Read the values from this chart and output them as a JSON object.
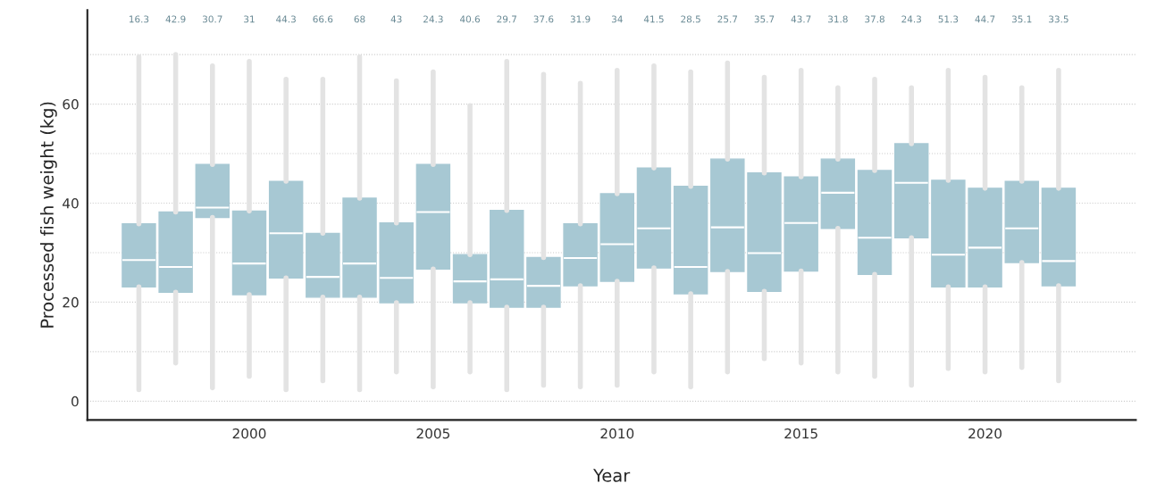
{
  "chart_data": {
    "type": "box",
    "xlabel": "Year",
    "ylabel": "Processed fish weight (kg)",
    "color": "#a7c8d3",
    "x": [
      1997,
      1998,
      1999,
      2000,
      2001,
      2002,
      2003,
      2004,
      2005,
      2006,
      2007,
      2008,
      2009,
      2010,
      2011,
      2012,
      2013,
      2014,
      2015,
      2016,
      2017,
      2018,
      2019,
      2020,
      2021,
      2022
    ],
    "boxes": [
      {
        "low": 2.3,
        "q1": 23.1,
        "median": 28.5,
        "q3": 35.8,
        "high": 69.5
      },
      {
        "low": 7.7,
        "q1": 22.0,
        "median": 27.1,
        "q3": 38.2,
        "high": 70
      },
      {
        "low": 2.7,
        "q1": 37.1,
        "median": 39.1,
        "q3": 47.8,
        "high": 67.7
      },
      {
        "low": 5,
        "q1": 21.5,
        "median": 27.8,
        "q3": 38.4,
        "high": 68.6
      },
      {
        "low": 2.3,
        "q1": 24.9,
        "median": 33.9,
        "q3": 44.4,
        "high": 65
      },
      {
        "low": 4.1,
        "q1": 21,
        "median": 25.1,
        "q3": 33.9,
        "high": 65
      },
      {
        "low": 2.3,
        "q1": 21,
        "median": 27.8,
        "q3": 41,
        "high": 69.5
      },
      {
        "low": 5.9,
        "q1": 19.9,
        "median": 24.9,
        "q3": 36,
        "high": 64.7
      },
      {
        "low": 2.9,
        "q1": 26.7,
        "median": 38.2,
        "q3": 47.8,
        "high": 66.5
      },
      {
        "low": 5.9,
        "q1": 19.9,
        "median": 24.2,
        "q3": 29.6,
        "high": 59.7
      },
      {
        "low": 2.3,
        "q1": 19,
        "median": 24.6,
        "q3": 38.5,
        "high": 68.6
      },
      {
        "low": 3.2,
        "q1": 19,
        "median": 23.3,
        "q3": 29,
        "high": 66
      },
      {
        "low": 2.9,
        "q1": 23.3,
        "median": 28.9,
        "q3": 35.8,
        "high": 64.2
      },
      {
        "low": 3.2,
        "q1": 24.2,
        "median": 31.7,
        "q3": 41.9,
        "high": 66.8
      },
      {
        "low": 5.9,
        "q1": 26.9,
        "median": 34.9,
        "q3": 47.1,
        "high": 67.7
      },
      {
        "low": 2.9,
        "q1": 21.7,
        "median": 27.1,
        "q3": 43.4,
        "high": 66.5
      },
      {
        "low": 5.9,
        "q1": 26.2,
        "median": 35.1,
        "q3": 48.9,
        "high": 68.3
      },
      {
        "low": 8.6,
        "q1": 22.2,
        "median": 29.9,
        "q3": 46.1,
        "high": 65.4
      },
      {
        "low": 7.7,
        "q1": 26.3,
        "median": 36,
        "q3": 45.3,
        "high": 66.8
      },
      {
        "low": 5.9,
        "q1": 34.9,
        "median": 42.1,
        "q3": 48.9,
        "high": 63.3
      },
      {
        "low": 5,
        "q1": 25.6,
        "median": 33,
        "q3": 46.6,
        "high": 65
      },
      {
        "low": 3.2,
        "q1": 33,
        "median": 44.1,
        "q3": 52,
        "high": 63.3
      },
      {
        "low": 6.6,
        "q1": 23.1,
        "median": 29.6,
        "q3": 44.6,
        "high": 66.8
      },
      {
        "low": 5.9,
        "q1": 23.1,
        "median": 31,
        "q3": 43,
        "high": 65.4
      },
      {
        "low": 6.8,
        "q1": 28,
        "median": 34.9,
        "q3": 44.4,
        "high": 63.3
      },
      {
        "low": 4.1,
        "q1": 23.3,
        "median": 28.3,
        "q3": 43,
        "high": 66.8
      }
    ],
    "annotations": [
      "16.3",
      "42.9",
      "30.7",
      "31",
      "44.3",
      "66.6",
      "68",
      "43",
      "24.3",
      "40.6",
      "29.7",
      "37.6",
      "31.9",
      "34",
      "41.5",
      "28.5",
      "25.7",
      "35.7",
      "43.7",
      "31.8",
      "37.8",
      "24.3",
      "51.3",
      "44.7",
      "35.1",
      "33.5"
    ],
    "xlim": [
      1995.6,
      2024.1
    ],
    "xticks": [
      2000,
      2005,
      2010,
      2015,
      2020
    ],
    "ylim": [
      -3.8,
      79
    ],
    "yticks": [
      0,
      {
        "value": 10,
        "label": null
      },
      20,
      {
        "value": 30,
        "label": null
      },
      40,
      {
        "value": 50,
        "label": null
      },
      60,
      {
        "value": 70,
        "label": null
      }
    ],
    "grid": "y",
    "legend": false
  }
}
